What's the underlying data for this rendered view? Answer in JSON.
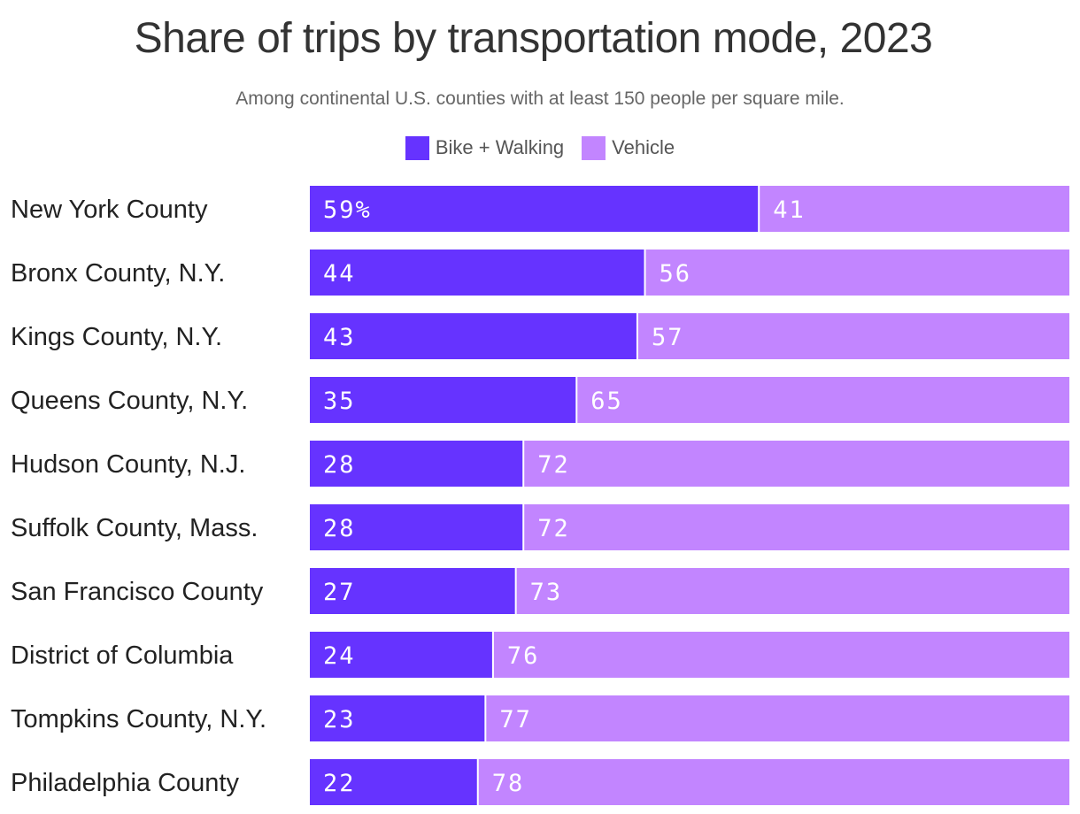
{
  "chart_data": {
    "type": "bar",
    "orientation": "horizontal",
    "stacked": true,
    "title": "Share of trips by transportation mode, 2023",
    "subtitle": "Among continental U.S. counties with at least 150 people per square mile.",
    "categories": [
      "New York County",
      "Bronx County, N.Y.",
      "Kings County, N.Y.",
      "Queens County, N.Y.",
      "Hudson County, N.J.",
      "Suffolk County, Mass.",
      "San Francisco County",
      "District of Columbia",
      "Tompkins County, N.Y.",
      "Philadelphia County"
    ],
    "series": [
      {
        "name": "Bike + Walking",
        "color": "#6633ff",
        "values": [
          59,
          44,
          43,
          35,
          28,
          28,
          27,
          24,
          23,
          22
        ],
        "labels": [
          "59%",
          "44",
          "43",
          "35",
          "28",
          "28",
          "27",
          "24",
          "23",
          "22"
        ]
      },
      {
        "name": "Vehicle",
        "color": "#c285ff",
        "values": [
          41,
          56,
          57,
          65,
          72,
          72,
          73,
          76,
          77,
          78
        ],
        "labels": [
          "41",
          "56",
          "57",
          "65",
          "72",
          "72",
          "73",
          "76",
          "77",
          "78"
        ]
      }
    ],
    "xlim": [
      0,
      100
    ],
    "grid": false,
    "legend_position": "top-center"
  }
}
